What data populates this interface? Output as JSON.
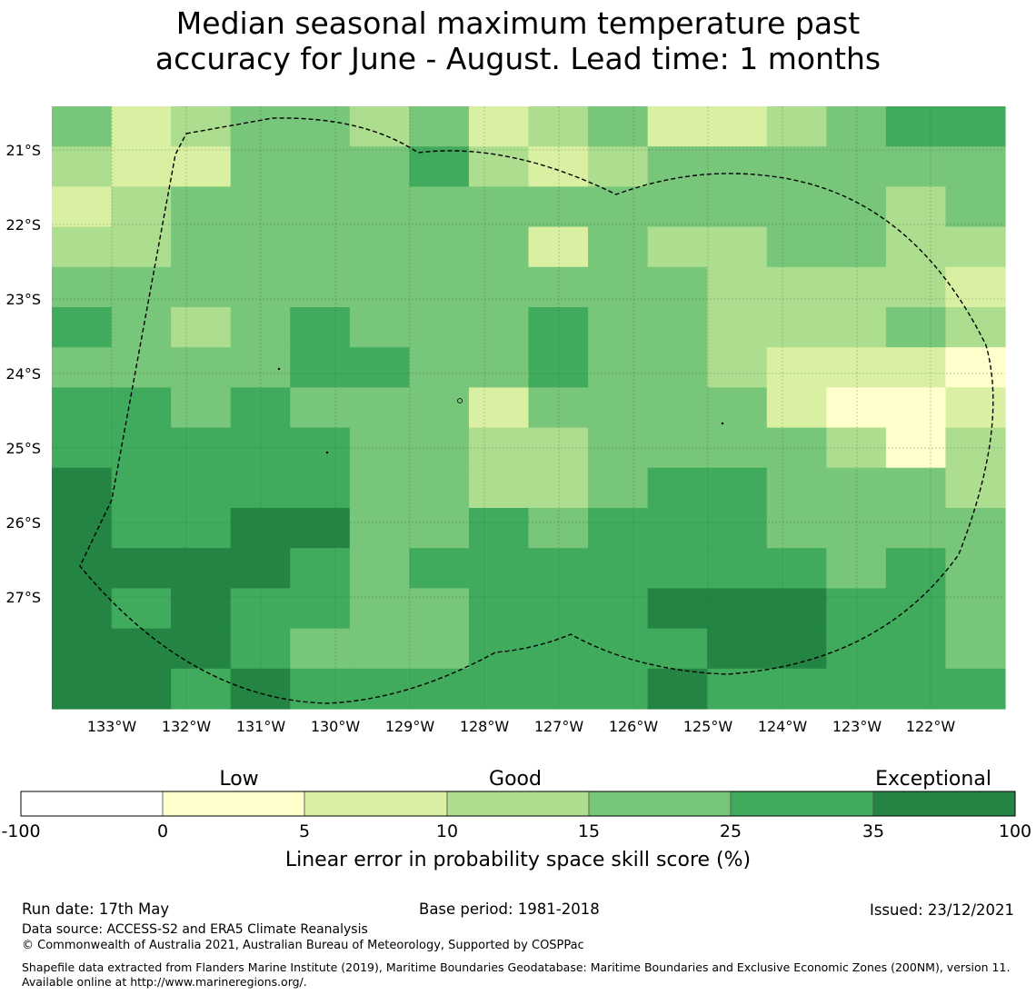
{
  "title_line1": "Median seasonal maximum temperature past",
  "title_line2": "accuracy for June - August. Lead time: 1 months",
  "map": {
    "lon_labels": [
      "133°W",
      "132°W",
      "131°W",
      "130°W",
      "129°W",
      "128°W",
      "127°W",
      "126°W",
      "125°W",
      "124°W",
      "123°W",
      "122°W"
    ],
    "lat_labels": [
      "21°S",
      "22°S",
      "23°S",
      "24°S",
      "25°S",
      "26°S",
      "27°S"
    ],
    "grid_cell_classes": [
      [
        4,
        2,
        3,
        4,
        4,
        3,
        4,
        2,
        3,
        4,
        2,
        2,
        3,
        4,
        5,
        5
      ],
      [
        3,
        2,
        2,
        4,
        4,
        4,
        5,
        3,
        2,
        3,
        4,
        4,
        4,
        4,
        4,
        4
      ],
      [
        2,
        3,
        4,
        4,
        4,
        4,
        4,
        4,
        4,
        4,
        4,
        4,
        4,
        4,
        3,
        4
      ],
      [
        3,
        3,
        4,
        4,
        4,
        4,
        4,
        4,
        2,
        4,
        3,
        3,
        4,
        4,
        3,
        3
      ],
      [
        4,
        4,
        4,
        4,
        4,
        4,
        4,
        4,
        4,
        4,
        4,
        3,
        3,
        3,
        3,
        2
      ],
      [
        5,
        4,
        3,
        4,
        5,
        4,
        4,
        4,
        5,
        4,
        4,
        3,
        3,
        3,
        4,
        3
      ],
      [
        4,
        4,
        4,
        4,
        5,
        5,
        4,
        4,
        5,
        4,
        4,
        3,
        2,
        2,
        2,
        1
      ],
      [
        5,
        5,
        4,
        5,
        4,
        4,
        4,
        2,
        4,
        4,
        4,
        4,
        2,
        1,
        1,
        2
      ],
      [
        5,
        5,
        5,
        5,
        5,
        4,
        4,
        3,
        3,
        4,
        4,
        4,
        4,
        3,
        1,
        3
      ],
      [
        6,
        5,
        5,
        5,
        5,
        4,
        4,
        3,
        3,
        4,
        5,
        5,
        4,
        4,
        4,
        3
      ],
      [
        6,
        5,
        5,
        6,
        6,
        4,
        4,
        5,
        4,
        5,
        5,
        5,
        4,
        4,
        4,
        4
      ],
      [
        6,
        6,
        6,
        6,
        5,
        4,
        5,
        5,
        5,
        5,
        5,
        5,
        5,
        4,
        5,
        4
      ],
      [
        6,
        5,
        6,
        5,
        5,
        4,
        4,
        5,
        5,
        5,
        6,
        6,
        6,
        5,
        5,
        4
      ],
      [
        6,
        6,
        6,
        5,
        4,
        4,
        4,
        5,
        5,
        5,
        5,
        6,
        6,
        5,
        5,
        4
      ],
      [
        6,
        6,
        5,
        6,
        5,
        5,
        5,
        5,
        5,
        5,
        6,
        5,
        5,
        5,
        5,
        5
      ]
    ]
  },
  "legend": {
    "labels": {
      "low": "Low",
      "good": "Good",
      "exceptional": "Exceptional"
    },
    "ticks": [
      "-100",
      "0",
      "5",
      "10",
      "15",
      "25",
      "35",
      "100"
    ],
    "colors": [
      "#ffffff",
      "#ffffcc",
      "#d9f0a3",
      "#addd8e",
      "#78c679",
      "#41ab5d",
      "#238443"
    ],
    "axis_label": "Linear error in probability space skill score (%)"
  },
  "footer": {
    "run_date": "Run date: 17th May",
    "base_period": "Base period: 1981-2018",
    "issued": "Issued: 23/12/2021",
    "data_source": "Data source: ACCESS-S2 and ERA5 Climate Reanalysis",
    "copyright": "© Commonwealth of Australia 2021, Australian Bureau of Meteorology, Supported by COSPPac",
    "shapefile": "Shapefile data extracted from Flanders Marine Institute (2019), Maritime Boundaries Geodatabase: Maritime Boundaries and Exclusive Economic Zones (200NM), version 11. Available online at http://www.marineregions.org/."
  }
}
